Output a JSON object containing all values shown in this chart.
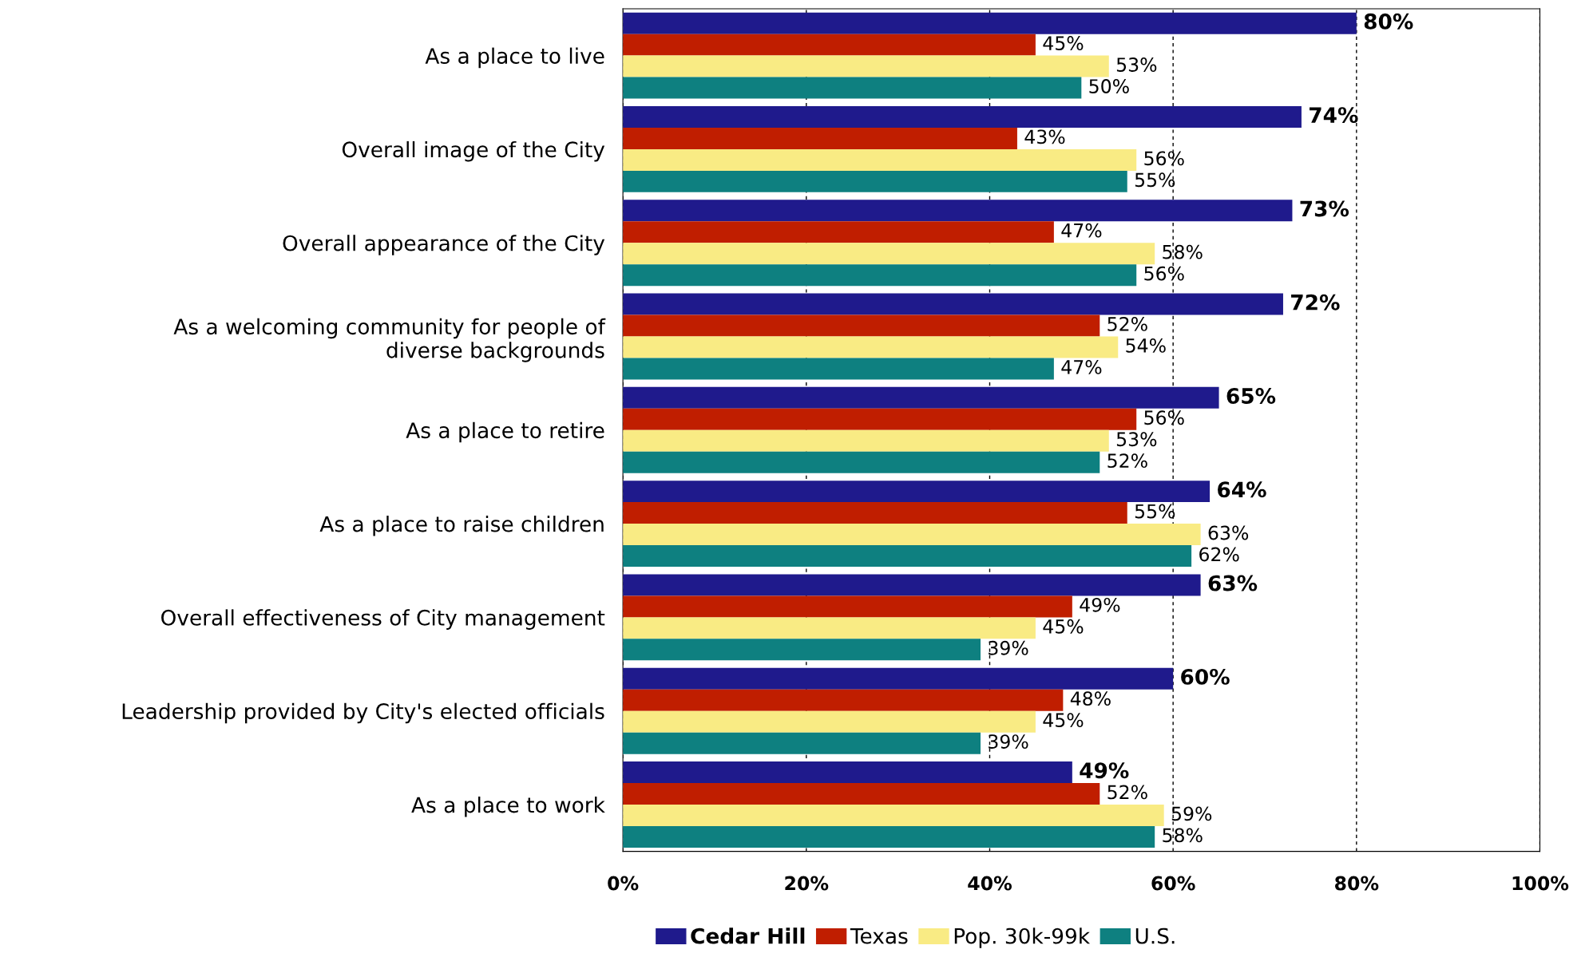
{
  "chart_data": {
    "type": "bar",
    "orientation": "horizontal",
    "categories": [
      "As a place to live",
      "Overall image of the City",
      "Overall appearance of the City",
      "As a welcoming community for people of\ndiverse backgrounds",
      "As a place to retire",
      "As a place to raise children",
      "Overall effectiveness of City management",
      "Leadership provided by City's elected officials",
      "As a place to work"
    ],
    "series": [
      {
        "name": "Cedar Hill",
        "color": "#1f1a8c",
        "values": [
          80,
          74,
          73,
          72,
          65,
          64,
          63,
          60,
          49
        ],
        "value_labels": [
          "80%",
          "74%",
          "73%",
          "72%",
          "65%",
          "64%",
          "63%",
          "60%",
          "49%"
        ]
      },
      {
        "name": "Texas",
        "color": "#c01e00",
        "values": [
          45,
          43,
          47,
          52,
          56,
          55,
          49,
          48,
          52
        ],
        "value_labels": [
          "45%",
          "43%",
          "47%",
          "52%",
          "56%",
          "55%",
          "49%",
          "48%",
          "52%"
        ]
      },
      {
        "name": "Pop. 30k-99k",
        "color": "#f9eb84",
        "values": [
          53,
          56,
          58,
          54,
          53,
          63,
          45,
          45,
          59
        ],
        "value_labels": [
          "53%",
          "56%",
          "58%",
          "54%",
          "53%",
          "63%",
          "45%",
          "45%",
          "59%"
        ]
      },
      {
        "name": "U.S.",
        "color": "#0e8080",
        "values": [
          50,
          55,
          56,
          47,
          52,
          62,
          39,
          39,
          58
        ],
        "value_labels": [
          "50%",
          "55%",
          "56%",
          "47%",
          "52%",
          "62%",
          "39%",
          "39%",
          "58%"
        ]
      }
    ],
    "xlim": [
      0,
      100
    ],
    "xticks": [
      {
        "value": 0,
        "label": "0%"
      },
      {
        "value": 20,
        "label": "20%"
      },
      {
        "value": 40,
        "label": "40%"
      },
      {
        "value": 60,
        "label": "60%"
      },
      {
        "value": 80,
        "label": "80%"
      },
      {
        "value": 100,
        "label": "100%"
      }
    ],
    "grid": "x",
    "legend": "bottom"
  }
}
